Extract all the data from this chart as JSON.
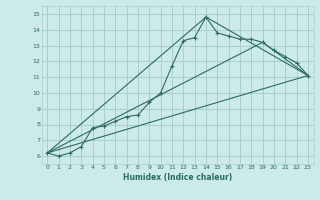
{
  "title": "",
  "xlabel": "Humidex (Indice chaleur)",
  "bg_color": "#cceae7",
  "grid_color": "#aacfcc",
  "line_color": "#2a6b65",
  "xlim": [
    -0.5,
    23.5
  ],
  "ylim": [
    5.5,
    15.5
  ],
  "xticks": [
    0,
    1,
    2,
    3,
    4,
    5,
    6,
    7,
    8,
    9,
    10,
    11,
    12,
    13,
    14,
    15,
    16,
    17,
    18,
    19,
    20,
    21,
    22,
    23
  ],
  "yticks": [
    6,
    7,
    8,
    9,
    10,
    11,
    12,
    13,
    14,
    15
  ],
  "line1_x": [
    0,
    1,
    2,
    3,
    4,
    5,
    6,
    7,
    8,
    9,
    10,
    11,
    12,
    13,
    14,
    15,
    16,
    17,
    18,
    19,
    20,
    21,
    22,
    23
  ],
  "line1_y": [
    6.2,
    6.0,
    6.2,
    6.6,
    7.8,
    7.9,
    8.2,
    8.5,
    8.6,
    9.4,
    10.0,
    11.7,
    13.3,
    13.5,
    14.8,
    13.8,
    13.6,
    13.4,
    13.4,
    13.2,
    12.7,
    12.3,
    11.9,
    11.1
  ],
  "line2_x": [
    0,
    14,
    23
  ],
  "line2_y": [
    6.2,
    14.8,
    11.1
  ],
  "line3_x": [
    0,
    19,
    23
  ],
  "line3_y": [
    6.2,
    13.2,
    11.1
  ],
  "line4_x": [
    0,
    23
  ],
  "line4_y": [
    6.2,
    11.1
  ]
}
